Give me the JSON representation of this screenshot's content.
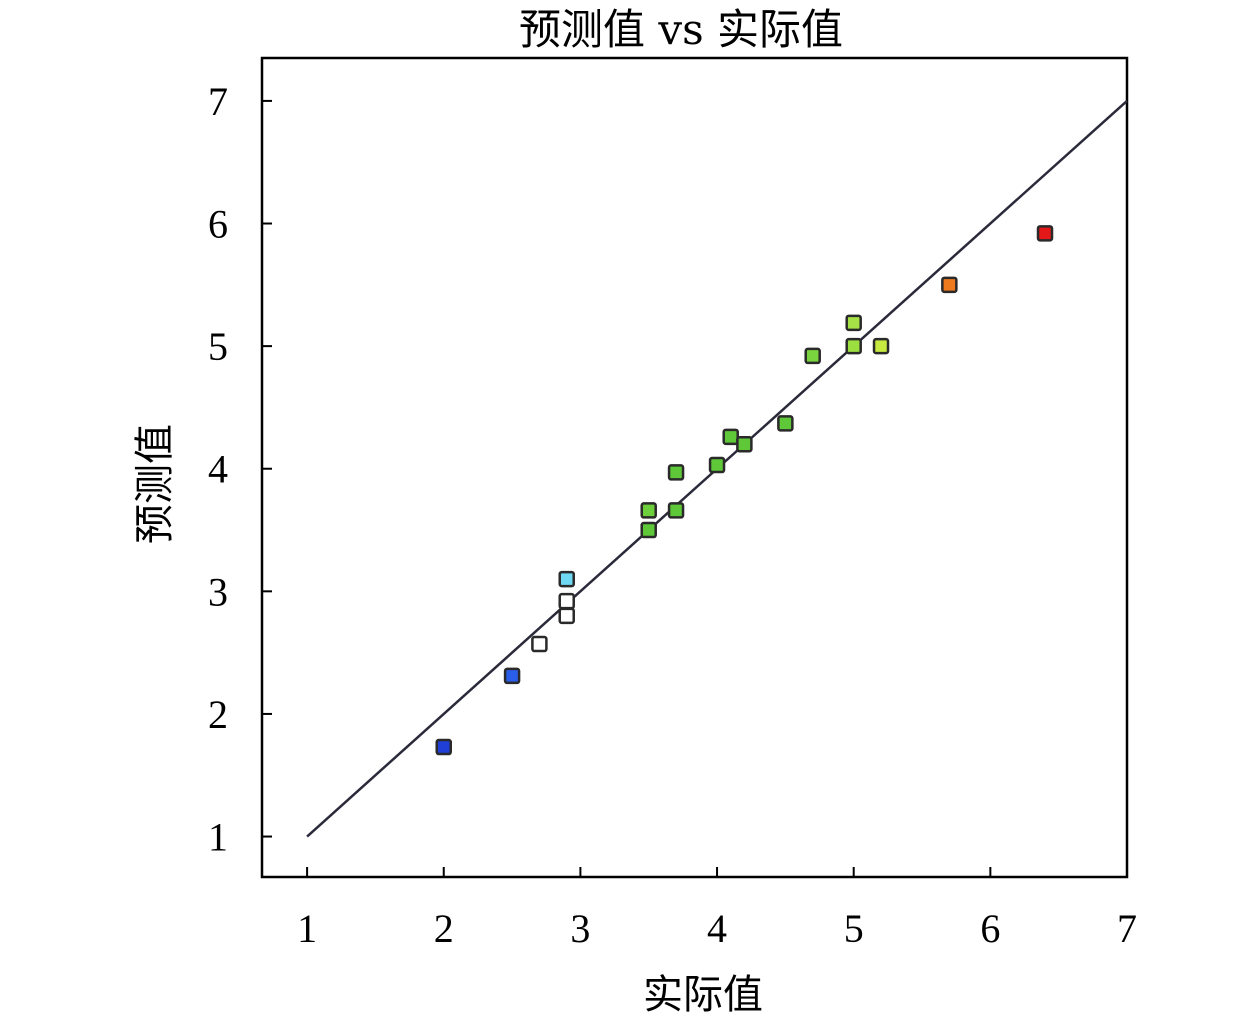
{
  "chart_data": {
    "type": "scatter",
    "title": "预测值 vs 实际值",
    "xlabel": "实际值",
    "ylabel": "预测值",
    "xlim": [
      0.67,
      7.0
    ],
    "ylim": [
      0.67,
      7.35
    ],
    "xticks": [
      "1",
      "2",
      "3",
      "4",
      "5",
      "6",
      "7"
    ],
    "yticks": [
      "1",
      "2",
      "3",
      "4",
      "5",
      "6",
      "7"
    ],
    "grid": false,
    "reference_line": {
      "x": [
        1,
        7
      ],
      "y": [
        1,
        7
      ],
      "color": "#2a2a3a"
    },
    "points": [
      {
        "x": 2.0,
        "y": 1.73,
        "color": "#1f3fd6"
      },
      {
        "x": 2.5,
        "y": 2.31,
        "color": "#2a5ee8"
      },
      {
        "x": 2.7,
        "y": 2.57,
        "color": "#ffffff"
      },
      {
        "x": 2.9,
        "y": 2.8,
        "color": "#ffffff"
      },
      {
        "x": 2.9,
        "y": 2.92,
        "color": "#ffffff"
      },
      {
        "x": 2.9,
        "y": 3.1,
        "color": "#6fd8f2"
      },
      {
        "x": 3.5,
        "y": 3.5,
        "color": "#5ec838"
      },
      {
        "x": 3.5,
        "y": 3.66,
        "color": "#6ecf3c"
      },
      {
        "x": 3.7,
        "y": 3.66,
        "color": "#5ec838"
      },
      {
        "x": 3.7,
        "y": 3.97,
        "color": "#5ec838"
      },
      {
        "x": 4.0,
        "y": 4.03,
        "color": "#5ec838"
      },
      {
        "x": 4.1,
        "y": 4.26,
        "color": "#5ec838"
      },
      {
        "x": 4.2,
        "y": 4.2,
        "color": "#5ec838"
      },
      {
        "x": 4.5,
        "y": 4.37,
        "color": "#5ec838"
      },
      {
        "x": 4.7,
        "y": 4.92,
        "color": "#7ad43e"
      },
      {
        "x": 5.0,
        "y": 5.0,
        "color": "#9ce040"
      },
      {
        "x": 5.0,
        "y": 5.19,
        "color": "#a6e246"
      },
      {
        "x": 5.2,
        "y": 5.0,
        "color": "#c6ea40"
      },
      {
        "x": 5.7,
        "y": 5.5,
        "color": "#ee7a1e"
      },
      {
        "x": 6.4,
        "y": 5.92,
        "color": "#e41818"
      }
    ]
  }
}
